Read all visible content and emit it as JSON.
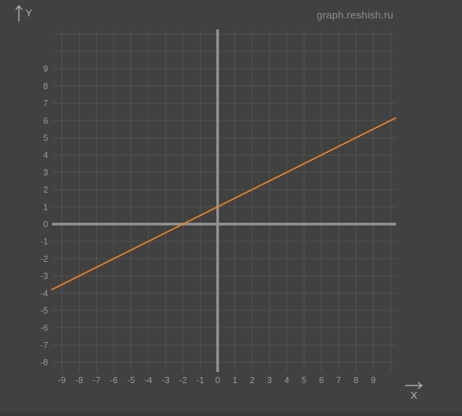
{
  "watermark": "graph.reshish.ru",
  "axis_labels": {
    "x": "X",
    "y": "Y"
  },
  "icons": {
    "y_axis_arrow": "up-arrow-icon",
    "x_axis_arrow": "right-arrow-icon"
  },
  "colors": {
    "background": "#414141",
    "gridline": "#555555",
    "axis": "#8f8f8f",
    "tick_label": "#9c9c9c",
    "corner_label": "#b4b4b4",
    "watermark": "#8e8e8e",
    "function_line": "#ee8420"
  },
  "chart_data": {
    "type": "line",
    "title": "",
    "xlabel": "X",
    "ylabel": "Y",
    "grid": true,
    "legend": false,
    "equation": "y = 0.5x + 1",
    "slope": 0.5,
    "intercept": 1,
    "xlim": [
      -9.6,
      10.3
    ],
    "ylim": [
      -8.6,
      11.3
    ],
    "x_gridline_range": [
      -9,
      10
    ],
    "y_gridline_range": [
      -8,
      11
    ],
    "x_tick_labels": [
      "-9",
      "-8",
      "-7",
      "-6",
      "-5",
      "-4",
      "-3",
      "-2",
      "-1",
      "0",
      "1",
      "2",
      "3",
      "4",
      "5",
      "6",
      "7",
      "8",
      "9"
    ],
    "y_tick_labels": [
      "9",
      "8",
      "7",
      "6",
      "5",
      "4",
      "3",
      "2",
      "1",
      "0",
      "-1",
      "-2",
      "-3",
      "-4",
      "-5",
      "-6",
      "-7",
      "-8"
    ],
    "line_points": [
      [
        -9.56,
        -3.78
      ],
      [
        -2,
        0
      ],
      [
        0,
        1
      ],
      [
        2,
        2
      ],
      [
        4,
        3
      ],
      [
        10.32,
        6.16
      ]
    ]
  }
}
